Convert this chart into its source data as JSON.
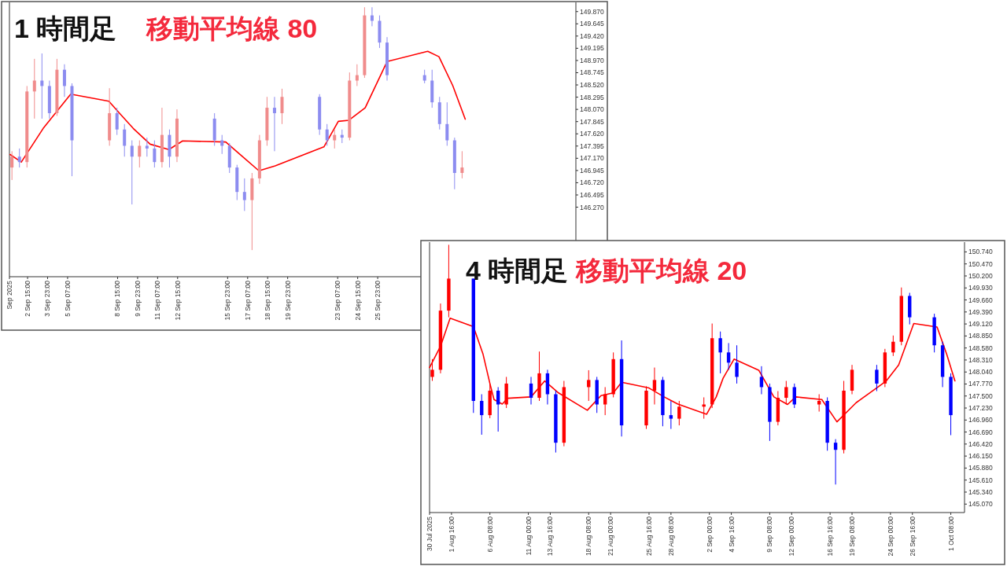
{
  "chart_data": [
    {
      "type": "candlestick",
      "title": "1 時間足",
      "subtitle": "移動平均線 80",
      "x": [
        "2025-09-01T14:00",
        "2025-09-02T02:00",
        "2025-09-02T14:00",
        "2025-09-03T02:00",
        "2025-09-03T14:00",
        "2025-09-04T02:00",
        "2025-09-04T14:00",
        "2025-09-05T02:00",
        "2025-09-05T14:00",
        "2025-09-08T02:00",
        "2025-09-08T14:00",
        "2025-09-09T02:00",
        "2025-09-09T14:00",
        "2025-09-10T02:00",
        "2025-09-10T14:00",
        "2025-09-11T02:00",
        "2025-09-11T14:00",
        "2025-09-12T02:00",
        "2025-09-12T14:00",
        "2025-09-15T02:00",
        "2025-09-15T14:00",
        "2025-09-16T02:00",
        "2025-09-16T14:00",
        "2025-09-17T02:00",
        "2025-09-17T14:00",
        "2025-09-18T02:00",
        "2025-09-18T14:00",
        "2025-09-19T02:00",
        "2025-09-19T14:00",
        "2025-09-22T02:00",
        "2025-09-22T14:00",
        "2025-09-23T02:00",
        "2025-09-23T14:00",
        "2025-09-24T02:00",
        "2025-09-24T14:00",
        "2025-09-25T02:00",
        "2025-09-25T14:00",
        "2025-09-26T02:00",
        "2025-09-26T14:00",
        "2025-09-29T02:00",
        "2025-09-29T14:00",
        "2025-09-30T02:00",
        "2025-09-30T14:00",
        "2025-10-01T02:00",
        "2025-10-01T14:00"
      ],
      "ohlc": [
        [
          147.0,
          147.3,
          146.77,
          147.2
        ],
        [
          147.2,
          147.35,
          147.0,
          147.1
        ],
        [
          147.1,
          148.5,
          147.0,
          148.4
        ],
        [
          148.4,
          149.0,
          147.9,
          148.6
        ],
        [
          148.6,
          149.1,
          147.9,
          148.5
        ],
        [
          148.5,
          148.6,
          147.9,
          148.0
        ],
        [
          148.0,
          149.0,
          147.95,
          148.8
        ],
        [
          148.8,
          148.9,
          148.3,
          148.5
        ],
        [
          148.5,
          148.55,
          146.84,
          147.5
        ],
        [
          147.5,
          148.46,
          147.4,
          148.0
        ],
        [
          148.0,
          148.1,
          147.6,
          147.7
        ],
        [
          147.7,
          147.8,
          147.2,
          147.4
        ],
        [
          147.4,
          147.5,
          146.32,
          147.2
        ],
        [
          147.2,
          147.5,
          147.0,
          147.4
        ],
        [
          147.4,
          147.55,
          147.2,
          147.35
        ],
        [
          147.35,
          147.5,
          147.0,
          147.1
        ],
        [
          147.1,
          148.1,
          147.0,
          147.6
        ],
        [
          147.6,
          147.7,
          147.0,
          147.2
        ],
        [
          147.2,
          148.07,
          147.1,
          147.9
        ],
        [
          147.9,
          148.0,
          147.4,
          147.5
        ],
        [
          147.5,
          147.6,
          147.25,
          147.4
        ],
        [
          147.4,
          147.45,
          146.9,
          147.0
        ],
        [
          147.0,
          147.05,
          146.4,
          146.55
        ],
        [
          146.55,
          146.8,
          146.2,
          146.4
        ],
        [
          146.4,
          146.9,
          145.48,
          146.8
        ],
        [
          146.8,
          147.6,
          146.7,
          147.5
        ],
        [
          147.5,
          148.3,
          147.4,
          148.1
        ],
        [
          148.1,
          148.3,
          147.3,
          148.0
        ],
        [
          148.0,
          148.45,
          147.8,
          148.3
        ],
        [
          148.3,
          148.35,
          147.6,
          147.7
        ],
        [
          147.7,
          147.8,
          147.4,
          147.5
        ],
        [
          147.5,
          147.7,
          147.35,
          147.6
        ],
        [
          147.6,
          147.7,
          147.45,
          147.55
        ],
        [
          147.55,
          148.75,
          147.5,
          148.6
        ],
        [
          148.6,
          148.9,
          148.5,
          148.7
        ],
        [
          148.7,
          149.95,
          148.65,
          149.8
        ],
        [
          149.8,
          149.95,
          149.6,
          149.7
        ],
        [
          149.7,
          149.8,
          149.2,
          149.3
        ],
        [
          149.3,
          149.4,
          148.6,
          148.7
        ],
        [
          148.7,
          148.8,
          148.55,
          148.6
        ],
        [
          148.6,
          148.8,
          148.1,
          148.2
        ],
        [
          148.2,
          148.3,
          147.7,
          147.8
        ],
        [
          147.8,
          148.2,
          147.4,
          147.5
        ],
        [
          147.5,
          147.55,
          146.6,
          146.9
        ],
        [
          146.9,
          147.3,
          146.8,
          147.0
        ]
      ],
      "colors": [
        "#f08c8c",
        "#8c8cf0",
        "#f08c8c",
        "#f08c8c",
        "#8c8cf0",
        "#8c8cf0",
        "#f08c8c",
        "#8c8cf0",
        "#8c8cf0",
        "#f08c8c",
        "#8c8cf0",
        "#8c8cf0",
        "#8c8cf0",
        "#f08c8c",
        "#8c8cf0",
        "#8c8cf0",
        "#f08c8c",
        "#8c8cf0",
        "#f08c8c",
        "#8c8cf0",
        "#8c8cf0",
        "#8c8cf0",
        "#8c8cf0",
        "#8c8cf0",
        "#f08c8c",
        "#f08c8c",
        "#f08c8c",
        "#8c8cf0",
        "#f08c8c",
        "#8c8cf0",
        "#8c8cf0",
        "#f08c8c",
        "#8c8cf0",
        "#f08c8c",
        "#f08c8c",
        "#f08c8c",
        "#8c8cf0",
        "#8c8cf0",
        "#8c8cf0",
        "#8c8cf0",
        "#8c8cf0",
        "#8c8cf0",
        "#8c8cf0",
        "#8c8cf0",
        "#f08c8c"
      ],
      "series": [
        {
          "type": "line",
          "color": "#ff0000",
          "x": [
            "2025-09-01T11:00",
            "2025-09-02T05:00",
            "2025-09-03T16:00",
            "2025-09-05T12:00",
            "2025-09-08T01:00",
            "2025-09-08T18:00",
            "2025-09-09T16:00",
            "2025-09-10T19:00",
            "2025-09-12T01:00",
            "2025-09-12T23:00",
            "2025-09-15T20:00",
            "2025-09-16T18:00",
            "2025-09-18T01:00",
            "2025-09-19T03:00",
            "2025-09-22T09:00",
            "2025-09-23T08:00",
            "2025-09-24T01:00",
            "2025-09-25T03:00",
            "2025-09-26T14:00",
            "2025-09-29T07:00",
            "2025-09-30T01:00",
            "2025-09-30T23:00",
            "2025-10-01T19:00"
          ],
          "values": [
            147.24,
            147.1,
            147.72,
            148.35,
            148.22,
            148.0,
            147.72,
            147.43,
            147.33,
            147.49,
            147.47,
            147.25,
            146.94,
            147.03,
            147.38,
            147.85,
            147.87,
            148.1,
            148.95,
            149.14,
            149.04,
            148.51,
            147.89
          ]
        }
      ],
      "xlim": [
        "2025-09-01T10:00",
        "2025-10-09T04:00"
      ],
      "ylim": [
        144.99,
        150.04
      ],
      "xticks": [
        {
          "value": "2025-09-01T10:00",
          "label": "Sep 2025"
        },
        {
          "value": "2025-09-02T15:00",
          "label": "2 Sep 15:00"
        },
        {
          "value": "2025-09-03T23:00",
          "label": "3 Sep 23:00"
        },
        {
          "value": "2025-09-05T07:00",
          "label": "5 Sep 07:00"
        },
        {
          "value": "2025-09-08T15:00",
          "label": "8 Sep 15:00"
        },
        {
          "value": "2025-09-09T23:00",
          "label": "9 Sep 23:00"
        },
        {
          "value": "2025-09-11T07:00",
          "label": "11 Sep 07:00"
        },
        {
          "value": "2025-09-12T15:00",
          "label": "12 Sep 15:00"
        },
        {
          "value": "2025-09-15T23:00",
          "label": "15 Sep 23:00"
        },
        {
          "value": "2025-09-17T07:00",
          "label": "17 Sep 07:00"
        },
        {
          "value": "2025-09-18T15:00",
          "label": "18 Sep 15:00"
        },
        {
          "value": "2025-09-19T23:00",
          "label": "19 Sep 23:00"
        },
        {
          "value": "2025-09-23T07:00",
          "label": "23 Sep 07:00"
        },
        {
          "value": "2025-09-24T15:00",
          "label": "24 Sep 15:00"
        },
        {
          "value": "2025-09-25T23:00",
          "label": "25 Sep 23:00"
        }
      ],
      "yticks": [
        {
          "value": 146.27,
          "label": "146.270"
        },
        {
          "value": 146.495,
          "label": "146.495"
        },
        {
          "value": 146.72,
          "label": "146.720"
        },
        {
          "value": 146.945,
          "label": "146.945"
        },
        {
          "value": 147.17,
          "label": "147.170"
        },
        {
          "value": 147.395,
          "label": "147.395"
        },
        {
          "value": 147.62,
          "label": "147.620"
        },
        {
          "value": 147.845,
          "label": "147.845"
        },
        {
          "value": 148.07,
          "label": "148.070"
        },
        {
          "value": 148.295,
          "label": "148.295"
        },
        {
          "value": 148.52,
          "label": "148.520"
        },
        {
          "value": 148.745,
          "label": "148.745"
        },
        {
          "value": 148.97,
          "label": "148.970"
        },
        {
          "value": 149.195,
          "label": "149.195"
        },
        {
          "value": 149.42,
          "label": "149.420"
        },
        {
          "value": 149.645,
          "label": "149.645"
        },
        {
          "value": 149.87,
          "label": "149.870"
        }
      ]
    },
    {
      "type": "candlestick",
      "title": "4 時間足",
      "subtitle": "移動平均線 20",
      "x": [
        "2025-07-30T08:00",
        "2025-07-31T08:00",
        "2025-08-01T08:00",
        "2025-08-04T08:00",
        "2025-08-05T08:00",
        "2025-08-06T08:00",
        "2025-08-07T08:00",
        "2025-08-08T08:00",
        "2025-08-11T08:00",
        "2025-08-12T08:00",
        "2025-08-13T08:00",
        "2025-08-14T08:00",
        "2025-08-15T08:00",
        "2025-08-18T08:00",
        "2025-08-19T08:00",
        "2025-08-20T08:00",
        "2025-08-21T08:00",
        "2025-08-22T08:00",
        "2025-08-25T08:00",
        "2025-08-26T08:00",
        "2025-08-27T08:00",
        "2025-08-28T08:00",
        "2025-08-29T08:00",
        "2025-09-01T08:00",
        "2025-09-02T08:00",
        "2025-09-03T08:00",
        "2025-09-04T08:00",
        "2025-09-05T08:00",
        "2025-09-08T08:00",
        "2025-09-09T08:00",
        "2025-09-10T08:00",
        "2025-09-11T08:00",
        "2025-09-12T08:00",
        "2025-09-15T08:00",
        "2025-09-16T08:00",
        "2025-09-17T08:00",
        "2025-09-18T08:00",
        "2025-09-19T08:00",
        "2025-09-22T08:00",
        "2025-09-23T08:00",
        "2025-09-24T08:00",
        "2025-09-25T08:00",
        "2025-09-26T08:00",
        "2025-09-29T08:00",
        "2025-09-30T08:00",
        "2025-10-01T08:00"
      ],
      "ohlc": [
        [
          147.93,
          148.33,
          147.84,
          148.09
        ],
        [
          148.09,
          149.58,
          148.01,
          149.42
        ],
        [
          149.42,
          150.9,
          149.27,
          150.14
        ],
        [
          150.14,
          150.14,
          147.12,
          147.39
        ],
        [
          147.39,
          147.54,
          146.63,
          147.07
        ],
        [
          147.07,
          147.78,
          147.0,
          147.62
        ],
        [
          147.62,
          147.7,
          146.7,
          147.31
        ],
        [
          147.31,
          147.93,
          147.23,
          147.78
        ],
        [
          147.78,
          147.93,
          147.31,
          147.46
        ],
        [
          147.46,
          148.5,
          147.39,
          148.01
        ],
        [
          148.01,
          148.09,
          147.31,
          147.54
        ],
        [
          147.54,
          147.62,
          146.23,
          146.45
        ],
        [
          146.45,
          147.84,
          146.37,
          147.7
        ],
        [
          147.7,
          148.08,
          147.39,
          147.86
        ],
        [
          147.86,
          147.93,
          147.12,
          147.31
        ],
        [
          147.31,
          147.7,
          147.07,
          147.54
        ],
        [
          147.54,
          148.48,
          147.47,
          148.33
        ],
        [
          148.33,
          148.75,
          146.59,
          146.84
        ],
        [
          146.84,
          147.72,
          146.76,
          147.62
        ],
        [
          147.62,
          148.14,
          147.31,
          147.86
        ],
        [
          147.86,
          147.93,
          146.82,
          147.07
        ],
        [
          147.07,
          147.39,
          146.76,
          146.99
        ],
        [
          146.99,
          147.39,
          146.84,
          147.26
        ],
        [
          147.26,
          147.47,
          146.99,
          147.31
        ],
        [
          147.31,
          149.13,
          147.23,
          148.8
        ],
        [
          148.8,
          148.95,
          148.01,
          148.48
        ],
        [
          148.48,
          148.69,
          148.09,
          148.25
        ],
        [
          148.25,
          148.64,
          147.78,
          147.93
        ],
        [
          147.93,
          148.17,
          147.54,
          147.7
        ],
        [
          147.7,
          147.78,
          146.49,
          146.92
        ],
        [
          146.92,
          147.61,
          146.84,
          147.46
        ],
        [
          147.46,
          147.84,
          147.31,
          147.7
        ],
        [
          147.7,
          147.78,
          147.23,
          147.31
        ],
        [
          147.31,
          147.54,
          147.15,
          147.39
        ],
        [
          147.39,
          147.47,
          146.27,
          146.45
        ],
        [
          146.45,
          146.53,
          145.51,
          146.29
        ],
        [
          146.29,
          147.84,
          146.21,
          147.62
        ],
        [
          147.62,
          148.2,
          147.54,
          148.09
        ],
        [
          148.09,
          148.2,
          147.61,
          147.78
        ],
        [
          147.78,
          148.56,
          147.7,
          148.48
        ],
        [
          148.48,
          148.86,
          148.4,
          148.72
        ],
        [
          148.72,
          149.94,
          148.64,
          149.75
        ],
        [
          149.75,
          149.82,
          149.11,
          149.27
        ],
        [
          149.27,
          149.35,
          148.48,
          148.64
        ],
        [
          148.64,
          148.72,
          147.7,
          147.93
        ],
        [
          147.93,
          148.01,
          146.62,
          147.07
        ]
      ],
      "colors": [
        "#ff0000",
        "#ff0000",
        "#ff0000",
        "#0000ff",
        "#0000ff",
        "#ff0000",
        "#0000ff",
        "#ff0000",
        "#0000ff",
        "#ff0000",
        "#0000ff",
        "#0000ff",
        "#ff0000",
        "#ff0000",
        "#0000ff",
        "#ff0000",
        "#ff0000",
        "#0000ff",
        "#ff0000",
        "#ff0000",
        "#0000ff",
        "#0000ff",
        "#ff0000",
        "#ff0000",
        "#ff0000",
        "#0000ff",
        "#0000ff",
        "#0000ff",
        "#0000ff",
        "#0000ff",
        "#ff0000",
        "#ff0000",
        "#0000ff",
        "#ff0000",
        "#0000ff",
        "#0000ff",
        "#ff0000",
        "#ff0000",
        "#0000ff",
        "#ff0000",
        "#ff0000",
        "#ff0000",
        "#0000ff",
        "#0000ff",
        "#0000ff",
        "#0000ff"
      ],
      "series": [
        {
          "type": "line",
          "color": "#ff0000",
          "x": [
            "2025-07-30T00:00",
            "2025-07-31T08:00",
            "2025-08-01T12:00",
            "2025-08-04T08:00",
            "2025-08-05T12:00",
            "2025-08-06T08:00",
            "2025-08-06T20:00",
            "2025-08-07T20:00",
            "2025-08-08T12:00",
            "2025-08-11T08:00",
            "2025-08-13T00:00",
            "2025-08-14T16:00",
            "2025-08-18T04:00",
            "2025-08-19T20:00",
            "2025-08-21T08:00",
            "2025-08-22T08:00",
            "2025-08-25T16:00",
            "2025-08-27T12:00",
            "2025-08-29T04:00",
            "2025-09-01T16:00",
            "2025-09-02T20:00",
            "2025-09-03T16:00",
            "2025-09-05T00:00",
            "2025-09-08T00:00",
            "2025-09-09T20:00",
            "2025-09-11T12:00",
            "2025-09-12T12:00",
            "2025-09-15T16:00",
            "2025-09-17T12:00",
            "2025-09-19T20:00",
            "2025-09-23T12:00",
            "2025-09-25T00:00",
            "2025-09-26T20:00",
            "2025-09-29T16:00",
            "2025-09-30T20:00",
            "2025-10-01T20:00"
          ],
          "values": [
            148.14,
            148.62,
            149.25,
            149.06,
            148.44,
            147.78,
            147.42,
            147.32,
            147.45,
            147.48,
            147.84,
            147.57,
            147.18,
            147.51,
            147.57,
            147.81,
            147.68,
            147.48,
            147.32,
            147.09,
            147.48,
            147.9,
            148.33,
            148.08,
            147.48,
            147.31,
            147.48,
            147.42,
            146.92,
            147.35,
            147.84,
            148.2,
            149.13,
            149.05,
            148.44,
            147.84
          ]
        }
      ],
      "xlim": [
        "2025-07-30T00:00",
        "2025-10-03T00:00"
      ],
      "ylim": [
        144.88,
        150.96
      ],
      "xticks": [
        {
          "value": "2025-07-30T00:00",
          "label": "30 Jul 2025"
        },
        {
          "value": "2025-08-01T16:00",
          "label": "1 Aug 16:00"
        },
        {
          "value": "2025-08-06T08:00",
          "label": "6 Aug 08:00"
        },
        {
          "value": "2025-08-11T00:00",
          "label": "11 Aug 00:00"
        },
        {
          "value": "2025-08-13T16:00",
          "label": "13 Aug 16:00"
        },
        {
          "value": "2025-08-18T08:00",
          "label": "18 Aug 08:00"
        },
        {
          "value": "2025-08-21T00:00",
          "label": "21 Aug 00:00"
        },
        {
          "value": "2025-08-25T16:00",
          "label": "25 Aug 16:00"
        },
        {
          "value": "2025-08-28T08:00",
          "label": "28 Aug 08:00"
        },
        {
          "value": "2025-09-02T00:00",
          "label": "2 Sep 00:00"
        },
        {
          "value": "2025-09-04T16:00",
          "label": "4 Sep 16:00"
        },
        {
          "value": "2025-09-09T08:00",
          "label": "9 Sep 08:00"
        },
        {
          "value": "2025-09-12T00:00",
          "label": "12 Sep 00:00"
        },
        {
          "value": "2025-09-16T16:00",
          "label": "16 Sep 16:00"
        },
        {
          "value": "2025-09-19T08:00",
          "label": "19 Sep 08:00"
        },
        {
          "value": "2025-09-24T00:00",
          "label": "24 Sep 00:00"
        },
        {
          "value": "2025-09-26T16:00",
          "label": "26 Sep 16:00"
        },
        {
          "value": "2025-10-01T08:00",
          "label": "1 Oct 08:00"
        }
      ],
      "yticks": [
        {
          "value": 145.07,
          "label": "145.070"
        },
        {
          "value": 145.34,
          "label": "145.340"
        },
        {
          "value": 145.61,
          "label": "145.610"
        },
        {
          "value": 145.88,
          "label": "145.880"
        },
        {
          "value": 146.15,
          "label": "146.150"
        },
        {
          "value": 146.42,
          "label": "146.420"
        },
        {
          "value": 146.69,
          "label": "146.690"
        },
        {
          "value": 146.96,
          "label": "146.960"
        },
        {
          "value": 147.23,
          "label": "147.230"
        },
        {
          "value": 147.5,
          "label": "147.500"
        },
        {
          "value": 147.77,
          "label": "147.770"
        },
        {
          "value": 148.04,
          "label": "148.040"
        },
        {
          "value": 148.31,
          "label": "148.310"
        },
        {
          "value": 148.58,
          "label": "148.580"
        },
        {
          "value": 148.85,
          "label": "148.850"
        },
        {
          "value": 149.12,
          "label": "149.120"
        },
        {
          "value": 149.39,
          "label": "149.390"
        },
        {
          "value": 149.66,
          "label": "149.660"
        },
        {
          "value": 149.93,
          "label": "149.930"
        },
        {
          "value": 150.2,
          "label": "150.200"
        },
        {
          "value": 150.47,
          "label": "150.470"
        },
        {
          "value": 150.74,
          "label": "150.740"
        }
      ]
    }
  ]
}
